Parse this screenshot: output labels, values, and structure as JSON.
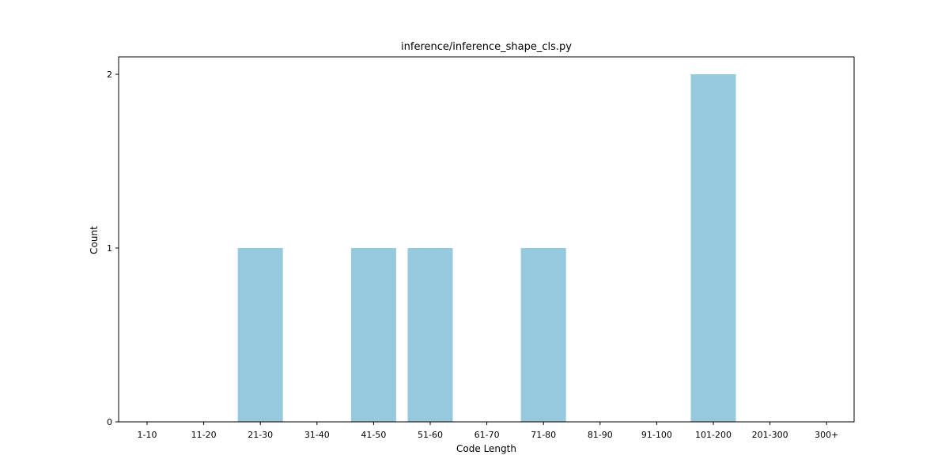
{
  "chart_data": {
    "type": "bar",
    "title": "inference/inference_shape_cls.py",
    "xlabel": "Code Length",
    "ylabel": "Count",
    "categories": [
      "1-10",
      "11-20",
      "21-30",
      "31-40",
      "41-50",
      "51-60",
      "61-70",
      "71-80",
      "81-90",
      "91-100",
      "101-200",
      "201-300",
      "300+"
    ],
    "values": [
      0,
      0,
      1,
      0,
      1,
      1,
      0,
      1,
      0,
      0,
      2,
      0,
      0
    ],
    "ylim": [
      0,
      2.1
    ],
    "yticks": [
      "0",
      "1",
      "2"
    ],
    "grid": false,
    "bar_color": "#96c9dd"
  }
}
